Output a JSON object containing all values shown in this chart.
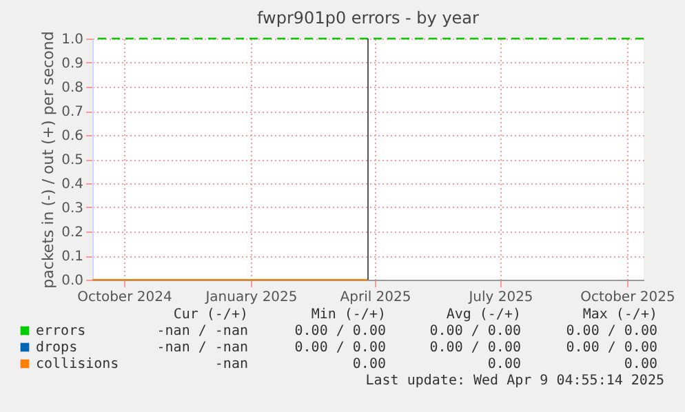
{
  "chart_data": {
    "type": "line",
    "title": "fwpr901p0 errors - by year",
    "ylabel": "packets in (-) / out (+) per second",
    "x": [
      "2024-09-08",
      "2025-03-27"
    ],
    "series": [
      {
        "name": "errors",
        "color": "#00cc00",
        "values": [
          null,
          null
        ]
      },
      {
        "name": "drops",
        "color": "#0066b3",
        "values": [
          null,
          null
        ]
      },
      {
        "name": "collisions",
        "color": "#ff8000",
        "values": [
          0,
          0
        ]
      }
    ],
    "xlim": [
      "2024-09-08",
      "2025-10-13"
    ],
    "xticks": [
      {
        "value": "2024-10-01",
        "label": "October 2024"
      },
      {
        "value": "2025-01-01",
        "label": "January 2025"
      },
      {
        "value": "2025-04-01",
        "label": "April 2025"
      },
      {
        "value": "2025-07-01",
        "label": "July 2025"
      },
      {
        "value": "2025-10-01",
        "label": "October 2025"
      }
    ],
    "ylim": [
      0,
      1
    ],
    "yticks": [
      {
        "value": 0,
        "label": "0.0"
      },
      {
        "value": 0.1,
        "label": "0.1"
      },
      {
        "value": 0.2,
        "label": "0.2"
      },
      {
        "value": 0.3,
        "label": "0.3"
      },
      {
        "value": 0.4,
        "label": "0.4"
      },
      {
        "value": 0.5,
        "label": "0.5"
      },
      {
        "value": 0.6,
        "label": "0.6"
      },
      {
        "value": 0.7,
        "label": "0.7"
      },
      {
        "value": 0.8,
        "label": "0.8"
      },
      {
        "value": 0.9,
        "label": "0.9"
      },
      {
        "value": 1,
        "label": "1.0"
      }
    ],
    "ref_lines": [
      {
        "axis": "y",
        "value": 1,
        "color": "#00cc00",
        "line_style": "dashed"
      },
      {
        "axis": "x",
        "value": "2025-03-27",
        "color": "#555555"
      }
    ],
    "grid": true,
    "legend": "bottom",
    "marker": "none",
    "line_style": "solid",
    "annotations": [
      "Cur (-/+)   Min (-/+)   Avg (-/+)   Max (-/+)",
      "-nan / -nan   0.00 / 0.00   0.00 / 0.00   0.00 / 0.00",
      "-nan / -nan   0.00 / 0.00   0.00 / 0.00   0.00 / 0.00",
      "-nan   0.00   0.00   0.00",
      "Last update: Wed Apr 9 04:55:14 2025"
    ]
  }
}
